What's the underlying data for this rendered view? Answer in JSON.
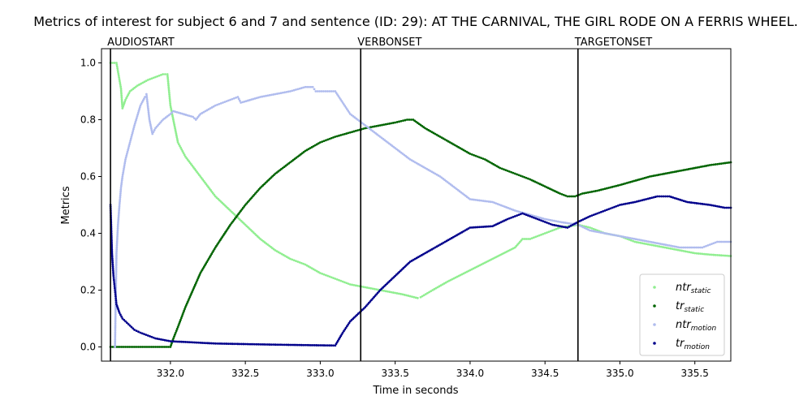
{
  "chart_data": {
    "type": "scatter",
    "title": "Metrics of interest for subject 6 and 7 and sentence (ID: 29): AT THE CARNIVAL, THE GIRL RODE ON A FERRIS WHEEL.",
    "xlabel": "Time in seconds",
    "ylabel": "Metrics",
    "xlim": [
      331.54,
      335.74
    ],
    "ylim": [
      -0.05,
      1.05
    ],
    "x_ticks": [
      332.0,
      332.5,
      333.0,
      333.5,
      334.0,
      334.5,
      335.0,
      335.5
    ],
    "x_tick_labels": [
      "332.0",
      "332.5",
      "333.0",
      "333.5",
      "334.0",
      "334.5",
      "335.0",
      "335.5"
    ],
    "y_ticks": [
      0.0,
      0.2,
      0.4,
      0.6,
      0.8,
      1.0
    ],
    "y_tick_labels": [
      "0.0",
      "0.2",
      "0.4",
      "0.6",
      "0.8",
      "1.0"
    ],
    "grid": false,
    "legend_position": "lower-right",
    "events": [
      {
        "label": "AUDIOSTART",
        "x": 331.6
      },
      {
        "label": "VERBONSET",
        "x": 333.27
      },
      {
        "label": "TARGETONSET",
        "x": 334.72
      }
    ],
    "series": [
      {
        "name": "ntr_static",
        "legend_main": "ntr",
        "legend_sub": "static",
        "color": "#90ee90",
        "points": [
          [
            331.6,
            1.0
          ],
          [
            331.64,
            1.0
          ],
          [
            331.67,
            0.91
          ],
          [
            331.68,
            0.84
          ],
          [
            331.7,
            0.87
          ],
          [
            331.73,
            0.9
          ],
          [
            331.78,
            0.92
          ],
          [
            331.85,
            0.94
          ],
          [
            331.95,
            0.96
          ],
          [
            331.98,
            0.96
          ],
          [
            332.0,
            0.85
          ],
          [
            332.05,
            0.72
          ],
          [
            332.1,
            0.67
          ],
          [
            332.2,
            0.6
          ],
          [
            332.3,
            0.53
          ],
          [
            332.4,
            0.48
          ],
          [
            332.5,
            0.43
          ],
          [
            332.6,
            0.38
          ],
          [
            332.7,
            0.34
          ],
          [
            332.8,
            0.31
          ],
          [
            332.9,
            0.29
          ],
          [
            333.0,
            0.26
          ],
          [
            333.1,
            0.24
          ],
          [
            333.2,
            0.22
          ],
          [
            333.3,
            0.21
          ],
          [
            333.4,
            0.2
          ],
          [
            333.5,
            0.19
          ],
          [
            333.55,
            0.185
          ],
          [
            333.65,
            0.172
          ],
          [
            333.67,
            0.175
          ],
          [
            333.75,
            0.2
          ],
          [
            333.85,
            0.23
          ],
          [
            334.0,
            0.27
          ],
          [
            334.15,
            0.31
          ],
          [
            334.3,
            0.35
          ],
          [
            334.35,
            0.38
          ],
          [
            334.4,
            0.38
          ],
          [
            334.5,
            0.4
          ],
          [
            334.6,
            0.42
          ],
          [
            334.72,
            0.43
          ],
          [
            334.8,
            0.42
          ],
          [
            334.9,
            0.4
          ],
          [
            335.0,
            0.39
          ],
          [
            335.1,
            0.37
          ],
          [
            335.2,
            0.36
          ],
          [
            335.3,
            0.35
          ],
          [
            335.4,
            0.34
          ],
          [
            335.5,
            0.33
          ],
          [
            335.6,
            0.325
          ],
          [
            335.74,
            0.32
          ]
        ]
      },
      {
        "name": "tr_static",
        "legend_main": "tr",
        "legend_sub": "static",
        "color": "#006400",
        "points": [
          [
            331.6,
            0.0
          ],
          [
            331.7,
            0.0
          ],
          [
            331.8,
            0.0
          ],
          [
            331.9,
            0.0
          ],
          [
            332.0,
            0.0
          ],
          [
            332.02,
            0.03
          ],
          [
            332.05,
            0.07
          ],
          [
            332.1,
            0.14
          ],
          [
            332.15,
            0.2
          ],
          [
            332.2,
            0.26
          ],
          [
            332.3,
            0.35
          ],
          [
            332.4,
            0.43
          ],
          [
            332.5,
            0.5
          ],
          [
            332.6,
            0.56
          ],
          [
            332.7,
            0.61
          ],
          [
            332.8,
            0.65
          ],
          [
            332.9,
            0.69
          ],
          [
            333.0,
            0.72
          ],
          [
            333.1,
            0.74
          ],
          [
            333.2,
            0.755
          ],
          [
            333.3,
            0.77
          ],
          [
            333.4,
            0.78
          ],
          [
            333.5,
            0.79
          ],
          [
            333.58,
            0.8
          ],
          [
            333.62,
            0.8
          ],
          [
            333.7,
            0.77
          ],
          [
            333.8,
            0.74
          ],
          [
            333.9,
            0.71
          ],
          [
            334.0,
            0.68
          ],
          [
            334.1,
            0.66
          ],
          [
            334.2,
            0.63
          ],
          [
            334.3,
            0.61
          ],
          [
            334.4,
            0.59
          ],
          [
            334.5,
            0.565
          ],
          [
            334.6,
            0.54
          ],
          [
            334.65,
            0.53
          ],
          [
            334.7,
            0.53
          ],
          [
            334.75,
            0.54
          ],
          [
            334.85,
            0.55
          ],
          [
            335.0,
            0.57
          ],
          [
            335.2,
            0.6
          ],
          [
            335.4,
            0.62
          ],
          [
            335.6,
            0.64
          ],
          [
            335.74,
            0.65
          ]
        ]
      },
      {
        "name": "ntr_motion",
        "legend_main": "ntr",
        "legend_sub": "motion",
        "color": "#b0bcee",
        "points": [
          [
            331.63,
            0.0
          ],
          [
            331.64,
            0.33
          ],
          [
            331.65,
            0.43
          ],
          [
            331.66,
            0.5
          ],
          [
            331.67,
            0.56
          ],
          [
            331.68,
            0.6
          ],
          [
            331.7,
            0.66
          ],
          [
            331.73,
            0.72
          ],
          [
            331.76,
            0.78
          ],
          [
            331.8,
            0.85
          ],
          [
            331.83,
            0.88
          ],
          [
            331.84,
            0.89
          ],
          [
            331.86,
            0.8
          ],
          [
            331.88,
            0.75
          ],
          [
            331.9,
            0.77
          ],
          [
            331.95,
            0.8
          ],
          [
            332.0,
            0.82
          ],
          [
            332.02,
            0.83
          ],
          [
            332.15,
            0.81
          ],
          [
            332.17,
            0.8
          ],
          [
            332.2,
            0.82
          ],
          [
            332.3,
            0.85
          ],
          [
            332.4,
            0.87
          ],
          [
            332.45,
            0.88
          ],
          [
            332.47,
            0.86
          ],
          [
            332.6,
            0.88
          ],
          [
            332.7,
            0.89
          ],
          [
            332.8,
            0.9
          ],
          [
            332.9,
            0.915
          ],
          [
            332.95,
            0.915
          ],
          [
            332.97,
            0.9
          ],
          [
            333.1,
            0.9
          ],
          [
            333.15,
            0.86
          ],
          [
            333.2,
            0.82
          ],
          [
            333.3,
            0.78
          ],
          [
            333.4,
            0.74
          ],
          [
            333.5,
            0.7
          ],
          [
            333.6,
            0.66
          ],
          [
            333.7,
            0.63
          ],
          [
            333.8,
            0.6
          ],
          [
            333.9,
            0.56
          ],
          [
            334.0,
            0.52
          ],
          [
            334.15,
            0.51
          ],
          [
            334.3,
            0.48
          ],
          [
            334.5,
            0.45
          ],
          [
            334.6,
            0.44
          ],
          [
            334.72,
            0.43
          ],
          [
            334.8,
            0.41
          ],
          [
            335.0,
            0.39
          ],
          [
            335.2,
            0.37
          ],
          [
            335.4,
            0.35
          ],
          [
            335.55,
            0.35
          ],
          [
            335.65,
            0.37
          ],
          [
            335.74,
            0.37
          ]
        ]
      },
      {
        "name": "tr_motion",
        "legend_main": "tr",
        "legend_sub": "motion",
        "color": "#00008b",
        "points": [
          [
            331.6,
            0.5
          ],
          [
            331.61,
            0.33
          ],
          [
            331.62,
            0.25
          ],
          [
            331.63,
            0.2
          ],
          [
            331.64,
            0.15
          ],
          [
            331.66,
            0.12
          ],
          [
            331.68,
            0.1
          ],
          [
            331.72,
            0.08
          ],
          [
            331.76,
            0.06
          ],
          [
            331.8,
            0.05
          ],
          [
            331.85,
            0.04
          ],
          [
            331.9,
            0.03
          ],
          [
            331.95,
            0.025
          ],
          [
            332.0,
            0.02
          ],
          [
            332.15,
            0.016
          ],
          [
            332.3,
            0.012
          ],
          [
            332.5,
            0.01
          ],
          [
            332.7,
            0.008
          ],
          [
            332.95,
            0.006
          ],
          [
            333.1,
            0.005
          ],
          [
            333.15,
            0.05
          ],
          [
            333.2,
            0.09
          ],
          [
            333.3,
            0.14
          ],
          [
            333.4,
            0.2
          ],
          [
            333.5,
            0.25
          ],
          [
            333.6,
            0.3
          ],
          [
            333.7,
            0.33
          ],
          [
            333.8,
            0.36
          ],
          [
            333.9,
            0.39
          ],
          [
            334.0,
            0.42
          ],
          [
            334.15,
            0.425
          ],
          [
            334.25,
            0.45
          ],
          [
            334.35,
            0.47
          ],
          [
            334.45,
            0.45
          ],
          [
            334.55,
            0.43
          ],
          [
            334.65,
            0.42
          ],
          [
            334.72,
            0.44
          ],
          [
            334.8,
            0.46
          ],
          [
            334.9,
            0.48
          ],
          [
            335.0,
            0.5
          ],
          [
            335.1,
            0.51
          ],
          [
            335.25,
            0.53
          ],
          [
            335.33,
            0.53
          ],
          [
            335.45,
            0.51
          ],
          [
            335.6,
            0.5
          ],
          [
            335.7,
            0.49
          ],
          [
            335.74,
            0.49
          ]
        ]
      }
    ]
  }
}
